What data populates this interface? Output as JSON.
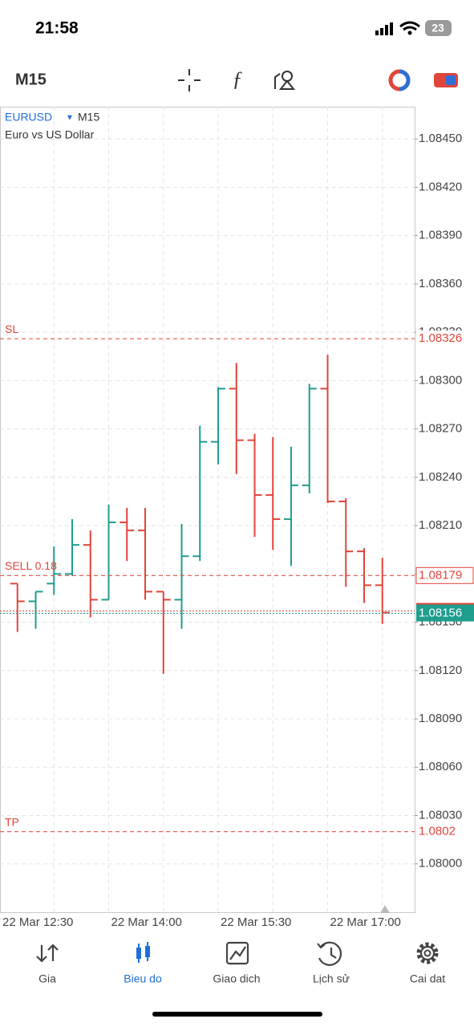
{
  "status_bar": {
    "time": "21:58",
    "battery": "23"
  },
  "toolbar": {
    "timeframe": "M15"
  },
  "chart_data": {
    "type": "ohlc",
    "symbol": "EURUSD",
    "timeframe": "M15",
    "description": "Euro vs US Dollar",
    "categories": [
      "22 Mar 12:30",
      null,
      null,
      null,
      null,
      null,
      "22 Mar 14:00",
      null,
      null,
      null,
      null,
      null,
      "22 Mar 15:30",
      null,
      null,
      null,
      null,
      null,
      "22 Mar 17:00",
      null,
      null,
      null
    ],
    "open": [
      null,
      1.08174,
      1.08163,
      1.08174,
      1.0818,
      1.08198,
      1.08164,
      1.08212,
      1.08207,
      1.08169,
      1.08164,
      1.08191,
      1.08262,
      1.08295,
      1.08263,
      1.08229,
      1.08214,
      1.08235,
      1.08295,
      1.08225,
      1.08194,
      1.08173
    ],
    "high": [
      null,
      1.08174,
      1.08169,
      1.08197,
      1.08214,
      1.08207,
      1.08223,
      1.08221,
      1.08221,
      1.08169,
      1.08211,
      1.08272,
      1.08296,
      1.08311,
      1.08267,
      1.08265,
      1.08259,
      1.08298,
      1.08316,
      1.08227,
      1.08196,
      1.0819
    ],
    "low": [
      null,
      1.08144,
      1.08146,
      1.08167,
      1.08179,
      1.08153,
      1.08164,
      1.08188,
      1.08164,
      1.08118,
      1.08146,
      1.08188,
      1.08248,
      1.08242,
      1.08203,
      1.08195,
      1.08185,
      1.0823,
      1.08224,
      1.08172,
      1.08162,
      1.08149
    ],
    "close": [
      null,
      1.08163,
      1.08169,
      1.0818,
      1.08198,
      1.08164,
      1.08212,
      1.08207,
      1.08169,
      1.08164,
      1.08191,
      1.08262,
      1.08295,
      1.08263,
      1.08229,
      1.08214,
      1.08235,
      1.08295,
      1.08225,
      1.08194,
      1.08173,
      1.08156
    ],
    "up_color": "#1f9e8e",
    "down_color": "#e0453a",
    "ylim": [
      1.0797,
      1.0847
    ],
    "yticks": [
      {
        "value": 1.0845,
        "label": "1.08450"
      },
      {
        "value": 1.0842,
        "label": "1.08420"
      },
      {
        "value": 1.0839,
        "label": "1.08390"
      },
      {
        "value": 1.0836,
        "label": "1.08360"
      },
      {
        "value": 1.0833,
        "label": "1.08330"
      },
      {
        "value": 1.083,
        "label": "1.08300"
      },
      {
        "value": 1.0827,
        "label": "1.08270"
      },
      {
        "value": 1.0824,
        "label": "1.08240"
      },
      {
        "value": 1.0821,
        "label": "1.08210"
      },
      {
        "value": 1.0818,
        "label": "1.08180"
      },
      {
        "value": 1.0815,
        "label": "1.08150"
      },
      {
        "value": 1.0812,
        "label": "1.08120"
      },
      {
        "value": 1.0809,
        "label": "1.08090"
      },
      {
        "value": 1.0806,
        "label": "1.08060"
      },
      {
        "value": 1.0803,
        "label": "1.08030"
      },
      {
        "value": 1.08,
        "label": "1.08000"
      }
    ],
    "levels": [
      {
        "label": "SL",
        "value": 1.08326
      },
      {
        "label": "SELL 0.18",
        "value": 1.08179
      },
      {
        "label": "TP",
        "value": 1.0802
      }
    ],
    "price_line": {
      "value": 1.08156,
      "color": "#1f9e8e"
    },
    "level_color": "#e0453a",
    "grid": true
  },
  "nav": [
    {
      "label": "Gia"
    },
    {
      "label": "Bieu do",
      "active": true
    },
    {
      "label": "Giao dich"
    },
    {
      "label": "Lịch sử"
    },
    {
      "label": "Cai dat"
    }
  ]
}
